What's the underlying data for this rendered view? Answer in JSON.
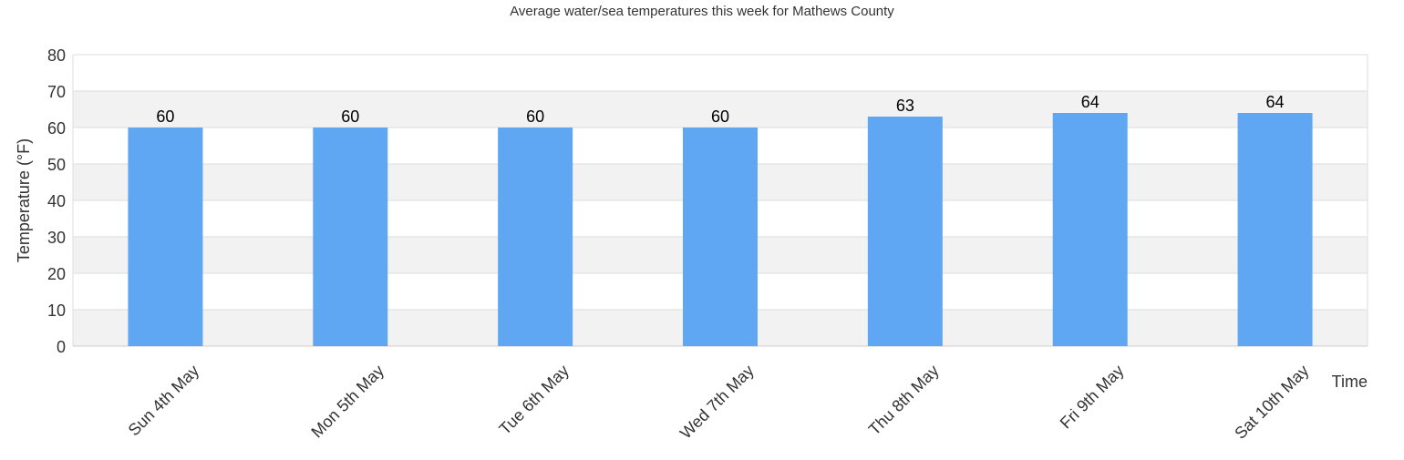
{
  "chart_data": {
    "type": "bar",
    "title": "Average water/sea temperatures this week for Mathews County",
    "xlabel": "Time",
    "ylabel": "Temperature (°F)",
    "categories": [
      "Sun 4th May",
      "Mon 5th May",
      "Tue 6th May",
      "Wed 7th May",
      "Thu 8th May",
      "Fri 9th May",
      "Sat 10th May"
    ],
    "values": [
      60,
      60,
      60,
      60,
      63,
      64,
      64
    ],
    "ylim": [
      0,
      80
    ],
    "yticks": [
      0,
      10,
      20,
      30,
      40,
      50,
      60,
      70,
      80
    ],
    "grid": true,
    "legend": "none",
    "colors": {
      "bar": "#60a7f3",
      "band_alt": "#f2f2f2",
      "band": "#ffffff",
      "grid": "#dddddd",
      "text": "#333333"
    }
  }
}
